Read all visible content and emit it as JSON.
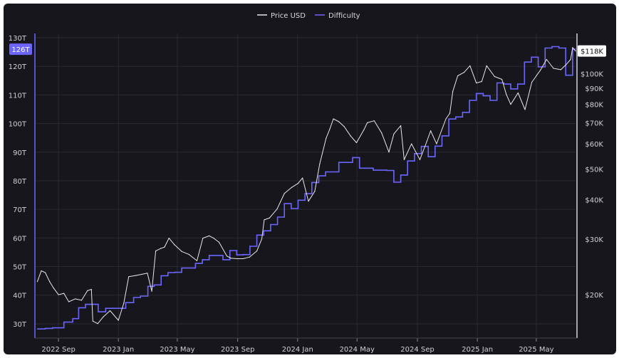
{
  "chart_data": {
    "type": "line",
    "legend": {
      "placement": "top-center",
      "entries": [
        "Price USD",
        "Difficulty"
      ]
    },
    "colors": {
      "price": "#e8e8ea",
      "difficulty": "#6c66ff",
      "background": "#17161d",
      "grid": "#2a2932"
    },
    "grid": true,
    "x_axis": {
      "ticks": [
        {
          "date": "2022-09-01",
          "label": "2022 Sep"
        },
        {
          "date": "2023-01-01",
          "label": "2023 Jan"
        },
        {
          "date": "2023-05-01",
          "label": "2023 May"
        },
        {
          "date": "2023-09-01",
          "label": "2023 Sep"
        },
        {
          "date": "2024-01-01",
          "label": "2024 Jan"
        },
        {
          "date": "2024-05-01",
          "label": "2024 May"
        },
        {
          "date": "2024-09-01",
          "label": "2024 Sep"
        },
        {
          "date": "2025-01-01",
          "label": "2025 Jan"
        },
        {
          "date": "2025-05-01",
          "label": "2025 May"
        }
      ],
      "range": [
        "2022-07-15",
        "2025-07-20"
      ]
    },
    "left_axis": {
      "name": "Difficulty",
      "ylim": [
        27,
        130
      ],
      "ticks": [
        {
          "value": 30,
          "label": "30T"
        },
        {
          "value": 40,
          "label": "40T"
        },
        {
          "value": 50,
          "label": "50T"
        },
        {
          "value": 60,
          "label": "60T"
        },
        {
          "value": 70,
          "label": "70T"
        },
        {
          "value": 80,
          "label": "80T"
        },
        {
          "value": 90,
          "label": "90T"
        },
        {
          "value": 100,
          "label": "100T"
        },
        {
          "value": 110,
          "label": "110T"
        },
        {
          "value": 120,
          "label": "120T"
        },
        {
          "value": 130,
          "label": "130T"
        }
      ],
      "current": {
        "value": 126,
        "label": "126T"
      }
    },
    "right_axis": {
      "name": "Price USD",
      "scale": "log",
      "ylim": [
        15200,
        130000
      ],
      "ticks": [
        {
          "value": 20000,
          "label": "$20K"
        },
        {
          "value": 30000,
          "label": "$30K"
        },
        {
          "value": 40000,
          "label": "$40K"
        },
        {
          "value": 50000,
          "label": "$50K"
        },
        {
          "value": 60000,
          "label": "$60K"
        },
        {
          "value": 70000,
          "label": "$70K"
        },
        {
          "value": 80000,
          "label": "$80K"
        },
        {
          "value": 90000,
          "label": "$90K"
        },
        {
          "value": 100000,
          "label": "$100K"
        }
      ],
      "current": {
        "value": 118000,
        "label": "$118K"
      }
    },
    "series": [
      {
        "name": "Price USD",
        "x": [
          "2022-07-20",
          "2022-07-28",
          "2022-08-05",
          "2022-08-14",
          "2022-08-22",
          "2022-09-01",
          "2022-09-12",
          "2022-09-22",
          "2022-10-05",
          "2022-10-18",
          "2022-10-30",
          "2022-11-07",
          "2022-11-10",
          "2022-11-20",
          "2022-12-01",
          "2022-12-15",
          "2023-01-01",
          "2023-01-12",
          "2023-01-22",
          "2023-02-05",
          "2023-02-18",
          "2023-03-01",
          "2023-03-10",
          "2023-03-18",
          "2023-03-28",
          "2023-04-05",
          "2023-04-14",
          "2023-04-25",
          "2023-05-10",
          "2023-05-25",
          "2023-06-10",
          "2023-06-22",
          "2023-07-05",
          "2023-07-14",
          "2023-07-25",
          "2023-08-10",
          "2023-08-18",
          "2023-08-30",
          "2023-09-12",
          "2023-09-25",
          "2023-10-10",
          "2023-10-20",
          "2023-10-25",
          "2023-11-05",
          "2023-11-20",
          "2023-12-05",
          "2023-12-20",
          "2024-01-02",
          "2024-01-11",
          "2024-01-23",
          "2024-02-05",
          "2024-02-15",
          "2024-02-28",
          "2024-03-06",
          "2024-03-14",
          "2024-03-25",
          "2024-04-05",
          "2024-04-18",
          "2024-04-30",
          "2024-05-15",
          "2024-05-22",
          "2024-06-05",
          "2024-06-20",
          "2024-07-05",
          "2024-07-15",
          "2024-07-29",
          "2024-08-05",
          "2024-08-20",
          "2024-09-06",
          "2024-09-20",
          "2024-09-28",
          "2024-10-10",
          "2024-10-29",
          "2024-11-06",
          "2024-11-12",
          "2024-11-22",
          "2024-12-05",
          "2024-12-17",
          "2024-12-30",
          "2025-01-10",
          "2025-01-20",
          "2025-02-05",
          "2025-02-20",
          "2025-03-01",
          "2025-03-10",
          "2025-03-25",
          "2025-04-08",
          "2025-04-22",
          "2025-05-10",
          "2025-05-22",
          "2025-06-05",
          "2025-06-20",
          "2025-07-01",
          "2025-07-10",
          "2025-07-14",
          "2025-07-20"
        ],
        "y": [
          22000,
          23800,
          23500,
          22000,
          21000,
          20000,
          20200,
          19000,
          19400,
          19200,
          20600,
          20800,
          16500,
          16200,
          17000,
          17800,
          16600,
          18800,
          22800,
          23000,
          23200,
          23400,
          20500,
          27500,
          28000,
          28300,
          30200,
          28800,
          27400,
          26800,
          25600,
          30200,
          30700,
          30200,
          29300,
          26500,
          26100,
          26000,
          26000,
          26300,
          27500,
          30000,
          34500,
          35000,
          37300,
          41800,
          43700,
          45000,
          46800,
          39500,
          42500,
          51800,
          62500,
          66500,
          72000,
          70500,
          68000,
          63500,
          60500,
          66500,
          70000,
          71000,
          65000,
          56500,
          64500,
          68500,
          53500,
          60000,
          53500,
          61000,
          66000,
          60000,
          72000,
          75000,
          88000,
          98500,
          101000,
          106000,
          93500,
          94500,
          106000,
          98000,
          96000,
          86000,
          80000,
          87000,
          77000,
          94000,
          103000,
          111000,
          104000,
          103000,
          107000,
          111000,
          121000,
          118000
        ]
      },
      {
        "name": "Difficulty",
        "x": [
          "2022-07-20",
          "2022-08-05",
          "2022-08-20",
          "2022-09-12",
          "2022-09-30",
          "2022-10-12",
          "2022-10-26",
          "2022-11-06",
          "2022-11-21",
          "2022-12-06",
          "2022-12-20",
          "2023-01-01",
          "2023-01-16",
          "2023-02-01",
          "2023-02-15",
          "2023-03-02",
          "2023-03-15",
          "2023-03-29",
          "2023-04-12",
          "2023-04-26",
          "2023-05-10",
          "2023-05-23",
          "2023-06-07",
          "2023-06-21",
          "2023-07-05",
          "2023-07-19",
          "2023-08-02",
          "2023-08-16",
          "2023-08-30",
          "2023-09-12",
          "2023-09-26",
          "2023-10-10",
          "2023-10-24",
          "2023-11-07",
          "2023-11-21",
          "2023-12-05",
          "2023-12-19",
          "2024-01-02",
          "2024-01-16",
          "2024-01-30",
          "2024-02-13",
          "2024-02-27",
          "2024-03-11",
          "2024-03-25",
          "2024-04-08",
          "2024-04-22",
          "2024-05-06",
          "2024-05-20",
          "2024-06-03",
          "2024-06-17",
          "2024-07-01",
          "2024-07-15",
          "2024-07-29",
          "2024-08-12",
          "2024-08-26",
          "2024-09-09",
          "2024-09-23",
          "2024-10-07",
          "2024-10-21",
          "2024-11-04",
          "2024-11-18",
          "2024-12-02",
          "2024-12-16",
          "2024-12-30",
          "2025-01-13",
          "2025-01-27",
          "2025-02-10",
          "2025-02-24",
          "2025-03-10",
          "2025-03-24",
          "2025-04-07",
          "2025-04-21",
          "2025-05-05",
          "2025-05-19",
          "2025-06-02",
          "2025-06-16",
          "2025-06-30",
          "2025-07-14"
        ],
        "y": [
          28.2,
          28.4,
          28.6,
          30.6,
          31.8,
          35.6,
          36.8,
          36.8,
          34.2,
          35.4,
          35.4,
          35.4,
          37.4,
          39.2,
          39.7,
          43.1,
          43.6,
          46.8,
          47.9,
          48.0,
          49.5,
          49.5,
          51.1,
          52.4,
          53.9,
          53.9,
          52.4,
          55.6,
          54.1,
          54.2,
          57.1,
          61.0,
          62.5,
          64.7,
          67.3,
          72.0,
          70.3,
          73.2,
          75.5,
          79.4,
          81.7,
          83.1,
          83.1,
          86.4,
          86.4,
          88.1,
          84.4,
          84.4,
          83.7,
          83.7,
          83.6,
          79.5,
          82.0,
          86.9,
          89.5,
          92.0,
          88.4,
          92.1,
          95.7,
          101.6,
          102.3,
          103.9,
          108.1,
          110.5,
          109.7,
          108.1,
          114.2,
          113.8,
          112.1,
          113.8,
          121.5,
          123.2,
          119.8,
          126.4,
          126.9,
          126.4,
          116.9,
          126.0
        ]
      }
    ]
  }
}
